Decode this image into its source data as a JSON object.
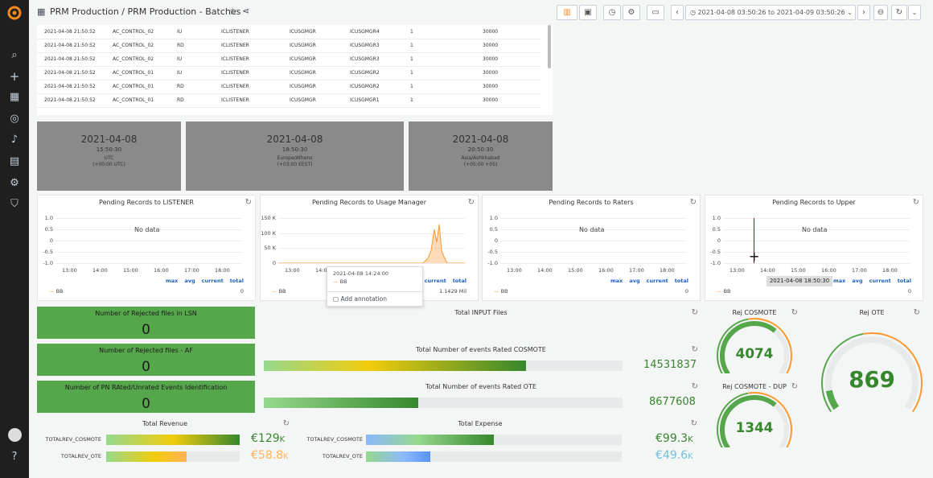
{
  "dashboard": {
    "title": "PRM Production / PRM Production - Batches",
    "time_range": "2021-04-08 03:50:26 to 2021-04-09 03:50:26"
  },
  "colors": {
    "green": "#56a64b",
    "dark_green": "#37872d",
    "orange": "#ff9830",
    "blue_link": "#1f60c4",
    "grey_clock": "#8a8a8a"
  },
  "table_rows": [
    [
      "2021-04-08 21:50:52",
      "AC_CONTROL_02",
      "IU",
      "ICLISTENER",
      "ICUSGMGR",
      "ICUSGMGR4",
      "1",
      "30000"
    ],
    [
      "2021-04-08 21:50:52",
      "AC_CONTROL_02",
      "RD",
      "ICLISTENER",
      "ICUSGMGR",
      "ICUSGMGR3",
      "1",
      "30000"
    ],
    [
      "2021-04-08 21:50:52",
      "AC_CONTROL_02",
      "IU",
      "ICLISTENER",
      "ICUSGMGR",
      "ICUSGMGR3",
      "1",
      "30000"
    ],
    [
      "2021-04-08 21:50:52",
      "AC_CONTROL_01",
      "IU",
      "ICLISTENER",
      "ICUSGMGR",
      "ICUSGMGR2",
      "1",
      "30000"
    ],
    [
      "2021-04-08 21:50:52",
      "AC_CONTROL_01",
      "RD",
      "ICLISTENER",
      "ICUSGMGR",
      "ICUSGMGR2",
      "1",
      "30000"
    ],
    [
      "2021-04-08 21:50:52",
      "AC_CONTROL_01",
      "RD",
      "ICLISTENER",
      "ICUSGMGR",
      "ICUSGMGR1",
      "1",
      "30000"
    ]
  ],
  "clocks": [
    {
      "date": "2021-04-08",
      "time": "15:50:30",
      "zone": "UTC",
      "offset": "(+00:00 UTC)"
    },
    {
      "date": "2021-04-08",
      "time": "18:50:30",
      "zone": "Europe/Athens",
      "offset": "(+03:00 EEST)"
    },
    {
      "date": "2021-04-08",
      "time": "20:50:30",
      "zone": "Asia/Ashkhabad",
      "offset": "(+05:00 +05)"
    }
  ],
  "graphs": [
    {
      "title": "Pending Records to LISTENER",
      "no_data": "No data",
      "y_ticks": [
        "1.0",
        "0.5",
        "0",
        "-0.5",
        "-1.0"
      ],
      "x_ticks": [
        "13:00",
        "14:00",
        "15:00",
        "16:00",
        "17:00",
        "18:00"
      ],
      "legend_cols": [
        "max",
        "avg",
        "current",
        "total"
      ],
      "series": "BB",
      "total": "0"
    },
    {
      "title": "Pending Records to Usage Manager",
      "no_data": "",
      "y_ticks": [
        "150 K",
        "100 K",
        "50 K",
        "0"
      ],
      "x_ticks": [
        "13:00",
        "14:00"
      ],
      "legend_cols": [
        "max",
        "avg",
        "current",
        "total"
      ],
      "series": "BB",
      "total": "1.1429 Mil"
    },
    {
      "title": "Pending Records to Raters",
      "no_data": "No data",
      "y_ticks": [
        "1.0",
        "0.5",
        "0",
        "-0.5",
        "-1.0"
      ],
      "x_ticks": [
        "13:00",
        "14:00",
        "15:00",
        "16:00",
        "17:00",
        "18:00"
      ],
      "legend_cols": [
        "max",
        "avg",
        "current",
        "total"
      ],
      "series": "BB",
      "total": "0"
    },
    {
      "title": "Pending Records to Upper",
      "no_data": "No data",
      "y_ticks": [
        "1.0",
        "0.5",
        "0",
        "-0.5",
        "-1.0"
      ],
      "x_ticks": [
        "13:00",
        "14:00",
        "15:00",
        "16:00",
        "17:00",
        "18:00"
      ],
      "legend_cols": [
        "max",
        "avg",
        "current",
        "total"
      ],
      "series": "BB",
      "total": "0"
    }
  ],
  "tooltip": {
    "time": "2021-04-08 14:24:00",
    "series": "BB",
    "annotation": "Add annotation"
  },
  "upper_tooltip": "2021-04-08 18:50:30",
  "stats": [
    {
      "title": "Number of Rejected files in LSN",
      "value": "0"
    },
    {
      "title": "Number of Rejected files - AF",
      "value": "0"
    },
    {
      "title": "Number of PN RAted/Unrated Events Identification",
      "value": "0"
    }
  ],
  "total_input": {
    "title": "Total INPUT Files"
  },
  "rated_cosmote": {
    "title": "Total Number of events Rated COSMOTE",
    "value": "14531837",
    "fill": 0.73
  },
  "rated_ote": {
    "title": "Total Number of events Rated OTE",
    "value": "8677608",
    "fill": 0.43
  },
  "gauges": [
    {
      "title": "Rej COSMOTE",
      "value": "4074"
    },
    {
      "title": "Rej OTE",
      "value": "869"
    },
    {
      "title": "Rej COSMOTE - DUP",
      "value": "1344"
    }
  ],
  "revenue": {
    "title": "Total Revenue",
    "rows": [
      {
        "label": "TOTALREV_COSMOTE",
        "value": "€129",
        "unit": "K",
        "fill": 1.0
      },
      {
        "label": "TOTALREV_OTE",
        "value": "€58.8",
        "unit": "K",
        "fill": 0.6
      }
    ]
  },
  "expense": {
    "title": "Total Expense",
    "rows": [
      {
        "label": "TOTALREV_COSMOTE",
        "value": "€99.3",
        "unit": "K",
        "fill": 0.5
      },
      {
        "label": "TOTALREV_OTE",
        "value": "€49.6",
        "unit": "K",
        "fill": 0.25
      }
    ]
  }
}
